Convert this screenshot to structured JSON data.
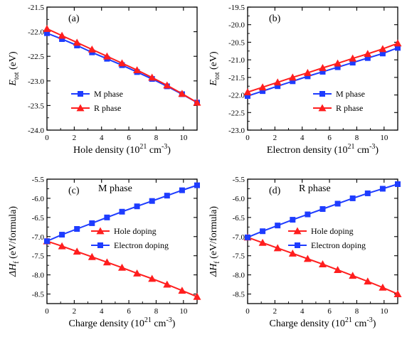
{
  "chart_data": [
    {
      "type": "line",
      "panel_label": "(a)",
      "subtitle": "",
      "xlabel": "Hole density (10²¹ cm⁻³)",
      "ylabel": "Etot (eV)",
      "ylabel_main": "E",
      "ylabel_sub": "tot",
      "ylabel_unit": " (eV)",
      "xlim": [
        0,
        11
      ],
      "ylim": [
        -24.0,
        -21.5
      ],
      "xticks": [
        0,
        2,
        4,
        6,
        8,
        10
      ],
      "yticks": [
        -24.0,
        -23.5,
        -23.0,
        -22.5,
        -22.0,
        -21.5
      ],
      "ytick_labels": [
        "-24.0",
        "-23.5",
        "-23.0",
        "-22.5",
        "-22.0",
        "-21.5"
      ],
      "legend_position": "bottom-left",
      "series": [
        {
          "name": "M phase",
          "color": "#1e3cff",
          "marker": "square",
          "x": [
            0,
            1.1,
            2.2,
            3.3,
            4.4,
            5.5,
            6.6,
            7.7,
            8.8,
            9.9,
            11
          ],
          "y": [
            -22.03,
            -22.15,
            -22.28,
            -22.42,
            -22.55,
            -22.68,
            -22.82,
            -22.96,
            -23.11,
            -23.27,
            -23.44
          ]
        },
        {
          "name": "R phase",
          "color": "#ff1e1e",
          "marker": "triangle",
          "x": [
            0,
            1.1,
            2.2,
            3.3,
            4.4,
            5.5,
            6.6,
            7.7,
            8.8,
            9.9,
            11
          ],
          "y": [
            -21.94,
            -22.08,
            -22.22,
            -22.36,
            -22.5,
            -22.64,
            -22.78,
            -22.93,
            -23.09,
            -23.26,
            -23.44
          ]
        }
      ]
    },
    {
      "type": "line",
      "panel_label": "(b)",
      "subtitle": "",
      "xlabel": "Electron density (10²¹ cm⁻³)",
      "ylabel": "Etot (eV)",
      "ylabel_main": "E",
      "ylabel_sub": "tot",
      "ylabel_unit": " (eV)",
      "xlim": [
        0,
        11
      ],
      "ylim": [
        -23.0,
        -19.5
      ],
      "xticks": [
        0,
        2,
        4,
        6,
        8,
        10
      ],
      "yticks": [
        -23.0,
        -22.5,
        -22.0,
        -21.5,
        -21.0,
        -20.5,
        -20.0,
        -19.5
      ],
      "ytick_labels": [
        "-23.0",
        "-22.5",
        "-22.0",
        "-21.5",
        "-21.0",
        "-20.5",
        "-20.0",
        "-19.5"
      ],
      "legend_position": "bottom-right",
      "series": [
        {
          "name": "M phase",
          "color": "#1e3cff",
          "marker": "square",
          "x": [
            0,
            1.1,
            2.2,
            3.3,
            4.4,
            5.5,
            6.6,
            7.7,
            8.8,
            9.9,
            11
          ],
          "y": [
            -22.03,
            -21.89,
            -21.75,
            -21.61,
            -21.47,
            -21.34,
            -21.21,
            -21.08,
            -20.95,
            -20.82,
            -20.66
          ]
        },
        {
          "name": "R phase",
          "color": "#ff1e1e",
          "marker": "triangle",
          "x": [
            0,
            1.1,
            2.2,
            3.3,
            4.4,
            5.5,
            6.6,
            7.7,
            8.8,
            9.9,
            11
          ],
          "y": [
            -21.92,
            -21.78,
            -21.64,
            -21.5,
            -21.37,
            -21.23,
            -21.1,
            -20.96,
            -20.83,
            -20.69,
            -20.53
          ]
        }
      ]
    },
    {
      "type": "line",
      "panel_label": "(c)",
      "subtitle": "M phase",
      "xlabel": "Charge density (10²¹ cm⁻³)",
      "ylabel": "ΔHf (eV/formula)",
      "ylabel_main": "ΔH",
      "ylabel_sub": "f",
      "ylabel_unit": " (eV/formula)",
      "xlim": [
        0,
        11
      ],
      "ylim": [
        -8.75,
        -5.5
      ],
      "xticks": [
        0,
        2,
        4,
        6,
        8,
        10
      ],
      "yticks": [
        -8.5,
        -8.0,
        -7.5,
        -7.0,
        -6.5,
        -6.0,
        -5.5
      ],
      "ytick_labels": [
        "-8.5",
        "-8.0",
        "-7.5",
        "-7.0",
        "-6.5",
        "-6.0",
        "-5.5"
      ],
      "legend_position": "center-right",
      "series": [
        {
          "name": "Hole doping",
          "color": "#ff1e1e",
          "marker": "triangle",
          "x": [
            0,
            1.1,
            2.2,
            3.3,
            4.4,
            5.5,
            6.6,
            7.7,
            8.8,
            9.9,
            11
          ],
          "y": [
            -7.12,
            -7.25,
            -7.39,
            -7.53,
            -7.67,
            -7.81,
            -7.96,
            -8.1,
            -8.25,
            -8.41,
            -8.57
          ]
        },
        {
          "name": "Electron doping",
          "color": "#1e3cff",
          "marker": "square",
          "x": [
            0,
            1.1,
            2.2,
            3.3,
            4.4,
            5.5,
            6.6,
            7.7,
            8.8,
            9.9,
            11
          ],
          "y": [
            -7.12,
            -6.95,
            -6.8,
            -6.65,
            -6.5,
            -6.35,
            -6.21,
            -6.07,
            -5.93,
            -5.79,
            -5.66
          ]
        }
      ]
    },
    {
      "type": "line",
      "panel_label": "(d)",
      "subtitle": "R phase",
      "xlabel": "Charge density (10²¹ cm⁻³)",
      "ylabel": "ΔHf (eV/formula)",
      "ylabel_main": "ΔH",
      "ylabel_sub": "f",
      "ylabel_unit": " (eV/formula)",
      "xlim": [
        0,
        11
      ],
      "ylim": [
        -8.75,
        -5.5
      ],
      "xticks": [
        0,
        2,
        4,
        6,
        8,
        10
      ],
      "yticks": [
        -8.5,
        -8.0,
        -7.5,
        -7.0,
        -6.5,
        -6.0,
        -5.5
      ],
      "ytick_labels": [
        "-8.5",
        "-8.0",
        "-7.5",
        "-7.0",
        "-6.5",
        "-6.0",
        "-5.5"
      ],
      "legend_position": "center-right",
      "series": [
        {
          "name": "Hole doping",
          "color": "#ff1e1e",
          "marker": "triangle",
          "x": [
            0,
            1.1,
            2.2,
            3.3,
            4.4,
            5.5,
            6.6,
            7.7,
            8.8,
            9.9,
            11
          ],
          "y": [
            -7.02,
            -7.16,
            -7.3,
            -7.44,
            -7.58,
            -7.72,
            -7.87,
            -8.02,
            -8.17,
            -8.33,
            -8.5
          ]
        },
        {
          "name": "Electron doping",
          "color": "#1e3cff",
          "marker": "square",
          "x": [
            0,
            1.1,
            2.2,
            3.3,
            4.4,
            5.5,
            6.6,
            7.7,
            8.8,
            9.9,
            11
          ],
          "y": [
            -7.02,
            -6.86,
            -6.71,
            -6.56,
            -6.42,
            -6.28,
            -6.14,
            -6.0,
            -5.87,
            -5.75,
            -5.63
          ]
        }
      ]
    }
  ]
}
